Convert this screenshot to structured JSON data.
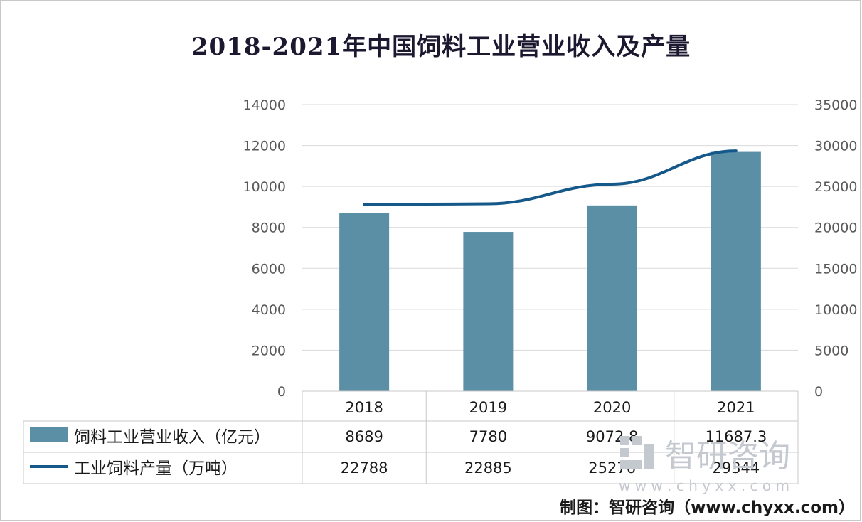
{
  "title": "2018-2021年中国饲料工业营业收入及产量",
  "source": "制图：智研咨询（www.chyxx.com）",
  "watermark": {
    "name": "智研咨询",
    "url": "w w w . c h y x x . c o m"
  },
  "colors": {
    "bar": "#5b8fa6",
    "line": "#15588a",
    "grid": "#d9d9d9",
    "table_border": "#c8c8c8"
  },
  "chart_data": {
    "type": "bar",
    "categories": [
      "2018",
      "2019",
      "2020",
      "2021"
    ],
    "left_axis": {
      "ylim": [
        0,
        14000
      ],
      "ticks": [
        "0",
        "2000",
        "4000",
        "6000",
        "8000",
        "10000",
        "12000",
        "14000"
      ]
    },
    "right_axis": {
      "ylim": [
        0,
        35000
      ],
      "ticks": [
        "0",
        "5000",
        "10000",
        "15000",
        "20000",
        "25000",
        "30000",
        "35000"
      ]
    },
    "grid": true,
    "legend": "data-table",
    "series": [
      {
        "name": "饲料工业营业收入（亿元）",
        "type": "bar",
        "axis": "left",
        "values": [
          8689,
          7780,
          9072.8,
          11687.3
        ],
        "labels": [
          "8689",
          "7780",
          "9072.8",
          "11687.3"
        ]
      },
      {
        "name": "工业饲料产量（万吨）",
        "type": "line",
        "axis": "right",
        "values": [
          22788,
          22885,
          25276,
          29344
        ],
        "labels": [
          "22788",
          "22885",
          "25276",
          "29344"
        ]
      }
    ]
  }
}
